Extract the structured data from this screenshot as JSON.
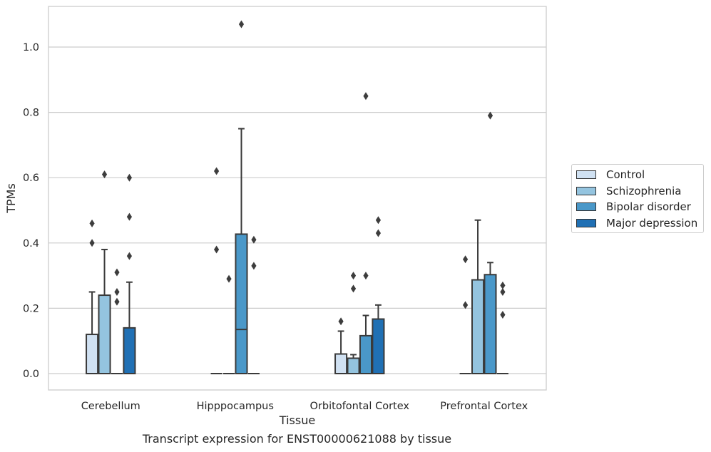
{
  "chart_data": {
    "type": "box",
    "xlabel": "Tissue",
    "ylabel": "TPMs",
    "ylim": [
      -0.05,
      1.13
    ],
    "yticks": [
      "0.0",
      "0.2",
      "0.4",
      "0.6",
      "0.8",
      "1.0"
    ],
    "grid": true,
    "legend_position": "right",
    "categories": [
      "Cerebellum",
      "Hipppocampus",
      "Orbitofontal Cortex",
      "Prefrontal Cortex"
    ],
    "series": [
      {
        "name": "Control",
        "color": "#d0e1f2",
        "boxes": [
          {
            "q1": 0,
            "median": 0,
            "q3": 0.12,
            "whisker_low": 0,
            "whisker_high": 0.25,
            "outliers": [
              0.4,
              0.46
            ]
          },
          {
            "q1": 0,
            "median": 0,
            "q3": 0,
            "whisker_low": 0,
            "whisker_high": 0,
            "outliers": [
              0.38,
              0.62
            ]
          },
          {
            "q1": 0,
            "median": 0,
            "q3": 0.06,
            "whisker_low": 0,
            "whisker_high": 0.13,
            "outliers": [
              0.16
            ]
          },
          {
            "q1": 0,
            "median": 0,
            "q3": 0,
            "whisker_low": 0,
            "whisker_high": 0,
            "outliers": [
              0.21,
              0.35
            ]
          }
        ]
      },
      {
        "name": "Schizophrenia",
        "color": "#94c4df",
        "boxes": [
          {
            "q1": 0,
            "median": 0,
            "q3": 0.24,
            "whisker_low": 0,
            "whisker_high": 0.38,
            "outliers": [
              0.61
            ]
          },
          {
            "q1": 0,
            "median": 0,
            "q3": 0,
            "whisker_low": 0,
            "whisker_high": 0,
            "outliers": [
              0.29
            ]
          },
          {
            "q1": 0,
            "median": 0,
            "q3": 0.047,
            "whisker_low": 0,
            "whisker_high": 0.058,
            "outliers": [
              0.26,
              0.3
            ]
          },
          {
            "q1": 0,
            "median": 0,
            "q3": 0.287,
            "whisker_low": 0,
            "whisker_high": 0.47,
            "outliers": []
          }
        ]
      },
      {
        "name": "Bipolar disorder",
        "color": "#4a98c9",
        "boxes": [
          {
            "q1": 0,
            "median": 0,
            "q3": 0,
            "whisker_low": 0,
            "whisker_high": 0,
            "outliers": [
              0.22,
              0.25,
              0.31
            ]
          },
          {
            "q1": 0,
            "median": 0.135,
            "q3": 0.427,
            "whisker_low": 0,
            "whisker_high": 0.75,
            "outliers": [
              1.07
            ]
          },
          {
            "q1": 0,
            "median": 0,
            "q3": 0.116,
            "whisker_low": 0,
            "whisker_high": 0.178,
            "outliers": [
              0.3,
              0.85
            ]
          },
          {
            "q1": 0,
            "median": 0,
            "q3": 0.303,
            "whisker_low": 0,
            "whisker_high": 0.34,
            "outliers": [
              0.79
            ]
          }
        ]
      },
      {
        "name": "Major depression",
        "color": "#2070b4",
        "boxes": [
          {
            "q1": 0,
            "median": 0,
            "q3": 0.14,
            "whisker_low": 0,
            "whisker_high": 0.28,
            "outliers": [
              0.36,
              0.48,
              0.6
            ]
          },
          {
            "q1": 0,
            "median": 0,
            "q3": 0,
            "whisker_low": 0,
            "whisker_high": 0,
            "outliers": [
              0.33,
              0.41
            ]
          },
          {
            "q1": 0,
            "median": 0,
            "q3": 0.167,
            "whisker_low": 0,
            "whisker_high": 0.21,
            "outliers": [
              0.43,
              0.47
            ]
          },
          {
            "q1": 0,
            "median": 0,
            "q3": 0,
            "whisker_low": 0,
            "whisker_high": 0,
            "outliers": [
              0.18,
              0.25,
              0.27
            ]
          }
        ]
      }
    ]
  },
  "caption": "Transcript expression for ENST00000621088 by tissue"
}
